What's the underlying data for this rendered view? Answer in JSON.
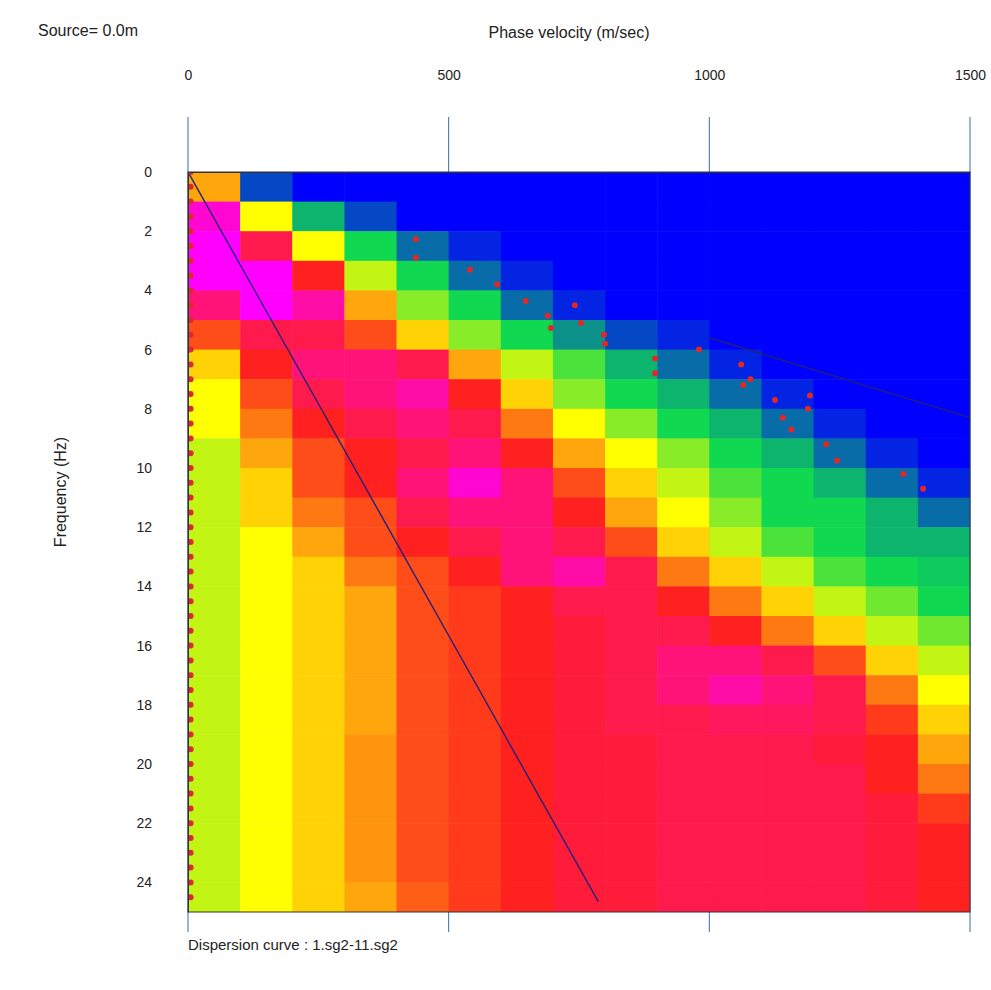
{
  "chart_data": {
    "type": "heatmap",
    "title": "Dispersion curve : 1.sg2-11.sg2",
    "subtitle": "Source= 0.0m",
    "x_label": "Phase velocity (m/sec)",
    "y_label": "Frequency (Hz)",
    "xlim": [
      0,
      1500
    ],
    "ylim": [
      0,
      25
    ],
    "xticks": [
      0,
      500,
      1000,
      1500
    ],
    "yticks": [
      0,
      2,
      4,
      6,
      8,
      10,
      12,
      14,
      16,
      18,
      20,
      22,
      24
    ],
    "grid": true,
    "heatmap": {
      "x": [
        0,
        100,
        200,
        300,
        400,
        500,
        600,
        700,
        800,
        900,
        1000,
        1100,
        1200,
        1300,
        1400
      ],
      "y": [
        0,
        1,
        2,
        3,
        4,
        5,
        6,
        7,
        8,
        9,
        10,
        11,
        12,
        13,
        14,
        15,
        16,
        17,
        18,
        19,
        20,
        21,
        22,
        23,
        24
      ],
      "zlim": [
        0,
        1
      ],
      "values": [
        [
          0.6,
          0.1,
          0,
          0,
          0,
          0,
          0,
          0,
          0,
          0,
          0,
          0,
          0,
          0,
          0
        ],
        [
          0.95,
          0.5,
          0.25,
          0.1,
          0,
          0,
          0,
          0,
          0,
          0,
          0,
          0,
          0,
          0,
          0
        ],
        [
          1,
          0.8,
          0.5,
          0.3,
          0.15,
          0.05,
          0,
          0,
          0,
          0,
          0,
          0,
          0,
          0,
          0
        ],
        [
          1,
          1,
          0.75,
          0.45,
          0.3,
          0.15,
          0.05,
          0,
          0,
          0,
          0,
          0,
          0,
          0,
          0
        ],
        [
          0.85,
          1,
          0.9,
          0.6,
          0.4,
          0.3,
          0.15,
          0.05,
          0,
          0,
          0,
          0,
          0,
          0,
          0
        ],
        [
          0.7,
          0.8,
          0.8,
          0.7,
          0.55,
          0.4,
          0.3,
          0.2,
          0.1,
          0.05,
          0,
          0,
          0,
          0,
          0
        ],
        [
          0.55,
          0.75,
          0.85,
          0.85,
          0.8,
          0.6,
          0.45,
          0.35,
          0.25,
          0.15,
          0.05,
          0,
          0,
          0,
          0
        ],
        [
          0.5,
          0.7,
          0.8,
          0.85,
          0.9,
          0.75,
          0.55,
          0.4,
          0.3,
          0.25,
          0.15,
          0.05,
          0,
          0,
          0
        ],
        [
          0.5,
          0.65,
          0.75,
          0.8,
          0.85,
          0.8,
          0.65,
          0.5,
          0.4,
          0.3,
          0.25,
          0.15,
          0.05,
          0,
          0
        ],
        [
          0.45,
          0.6,
          0.7,
          0.75,
          0.8,
          0.85,
          0.75,
          0.6,
          0.5,
          0.4,
          0.3,
          0.25,
          0.15,
          0.05,
          0
        ],
        [
          0.45,
          0.55,
          0.7,
          0.75,
          0.85,
          0.95,
          0.85,
          0.7,
          0.55,
          0.45,
          0.35,
          0.3,
          0.25,
          0.15,
          0.05
        ],
        [
          0.45,
          0.55,
          0.65,
          0.7,
          0.8,
          0.85,
          0.85,
          0.75,
          0.6,
          0.5,
          0.4,
          0.3,
          0.3,
          0.25,
          0.15
        ],
        [
          0.45,
          0.5,
          0.6,
          0.7,
          0.75,
          0.8,
          0.85,
          0.8,
          0.7,
          0.55,
          0.45,
          0.35,
          0.3,
          0.25,
          0.25
        ],
        [
          0.45,
          0.5,
          0.55,
          0.65,
          0.7,
          0.75,
          0.85,
          0.9,
          0.8,
          0.65,
          0.55,
          0.45,
          0.35,
          0.3,
          0.28
        ],
        [
          0.45,
          0.5,
          0.55,
          0.6,
          0.7,
          0.72,
          0.75,
          0.8,
          0.8,
          0.75,
          0.65,
          0.55,
          0.45,
          0.38,
          0.3
        ],
        [
          0.45,
          0.5,
          0.55,
          0.6,
          0.7,
          0.72,
          0.75,
          0.78,
          0.8,
          0.8,
          0.75,
          0.65,
          0.55,
          0.45,
          0.38
        ],
        [
          0.45,
          0.5,
          0.55,
          0.6,
          0.7,
          0.72,
          0.75,
          0.78,
          0.8,
          0.85,
          0.85,
          0.8,
          0.7,
          0.55,
          0.45
        ],
        [
          0.45,
          0.5,
          0.55,
          0.6,
          0.7,
          0.72,
          0.75,
          0.78,
          0.8,
          0.85,
          0.9,
          0.85,
          0.8,
          0.65,
          0.5
        ],
        [
          0.45,
          0.5,
          0.55,
          0.6,
          0.7,
          0.72,
          0.75,
          0.78,
          0.8,
          0.8,
          0.82,
          0.82,
          0.8,
          0.72,
          0.55
        ],
        [
          0.45,
          0.5,
          0.55,
          0.62,
          0.7,
          0.72,
          0.75,
          0.78,
          0.78,
          0.8,
          0.8,
          0.8,
          0.78,
          0.75,
          0.6
        ],
        [
          0.45,
          0.5,
          0.55,
          0.62,
          0.7,
          0.72,
          0.75,
          0.78,
          0.78,
          0.8,
          0.8,
          0.8,
          0.8,
          0.75,
          0.65
        ],
        [
          0.45,
          0.5,
          0.55,
          0.62,
          0.7,
          0.72,
          0.75,
          0.78,
          0.78,
          0.8,
          0.8,
          0.8,
          0.8,
          0.78,
          0.72
        ],
        [
          0.45,
          0.5,
          0.55,
          0.62,
          0.7,
          0.72,
          0.75,
          0.78,
          0.78,
          0.8,
          0.8,
          0.8,
          0.8,
          0.78,
          0.75
        ],
        [
          0.45,
          0.5,
          0.55,
          0.62,
          0.7,
          0.72,
          0.75,
          0.78,
          0.78,
          0.8,
          0.8,
          0.8,
          0.8,
          0.78,
          0.75
        ],
        [
          0.45,
          0.5,
          0.55,
          0.6,
          0.68,
          0.72,
          0.75,
          0.78,
          0.78,
          0.8,
          0.8,
          0.8,
          0.8,
          0.78,
          0.75
        ]
      ]
    },
    "series": [
      {
        "type": "line",
        "color": "#22227a",
        "line_style": "solid",
        "x": [
          0,
          787
        ],
        "values": [
          0,
          24.65
        ]
      },
      {
        "type": "line",
        "color": "#22227a",
        "line_style": "solid",
        "x": [
          1000,
          1500
        ],
        "values": [
          5.6,
          8.3
        ]
      },
      {
        "type": "scatter",
        "color": "#e02828",
        "marker": "circle",
        "x": [
          5,
          5,
          5,
          5,
          5,
          5,
          5,
          5,
          5,
          5,
          5,
          5,
          5,
          5,
          5,
          5,
          5,
          5,
          5,
          5,
          5,
          5,
          5,
          5,
          5,
          5,
          5,
          5,
          5,
          5,
          5,
          5,
          5,
          5,
          5,
          5,
          5,
          5,
          5,
          5,
          5,
          5,
          5,
          5,
          5,
          5,
          5,
          5,
          5,
          5
        ],
        "values": [
          0,
          0.5,
          1,
          1.5,
          2,
          2.5,
          3,
          3.5,
          4,
          4.5,
          5,
          5.5,
          6,
          6.5,
          7,
          7.5,
          8,
          8.5,
          9,
          9.5,
          10,
          10.5,
          11,
          11.5,
          12,
          12.5,
          13,
          13.5,
          14,
          14.5,
          15,
          15.5,
          16,
          16.5,
          17,
          17.5,
          18,
          18.5,
          19,
          19.5,
          20,
          20.5,
          21,
          21.5,
          22,
          22.5,
          23,
          23.5,
          24,
          24.5
        ]
      },
      {
        "type": "scatter",
        "color": "#e02828",
        "marker": "circle",
        "x": [
          437,
          437,
          541,
          593,
          648,
          690,
          696,
          742,
          754,
          798,
          800,
          896,
          896,
          980,
          1061,
          1065,
          1079,
          1126,
          1141,
          1157,
          1193,
          1189,
          1224,
          1245,
          1372,
          1410
        ],
        "values": [
          2.27,
          2.9,
          3.3,
          3.8,
          4.36,
          4.86,
          5.27,
          4.5,
          5.1,
          5.5,
          5.8,
          6.3,
          6.8,
          6.0,
          6.5,
          7.2,
          7.0,
          7.7,
          8.3,
          8.7,
          7.55,
          8.0,
          9.2,
          9.75,
          10.2,
          10.7
        ]
      }
    ]
  }
}
